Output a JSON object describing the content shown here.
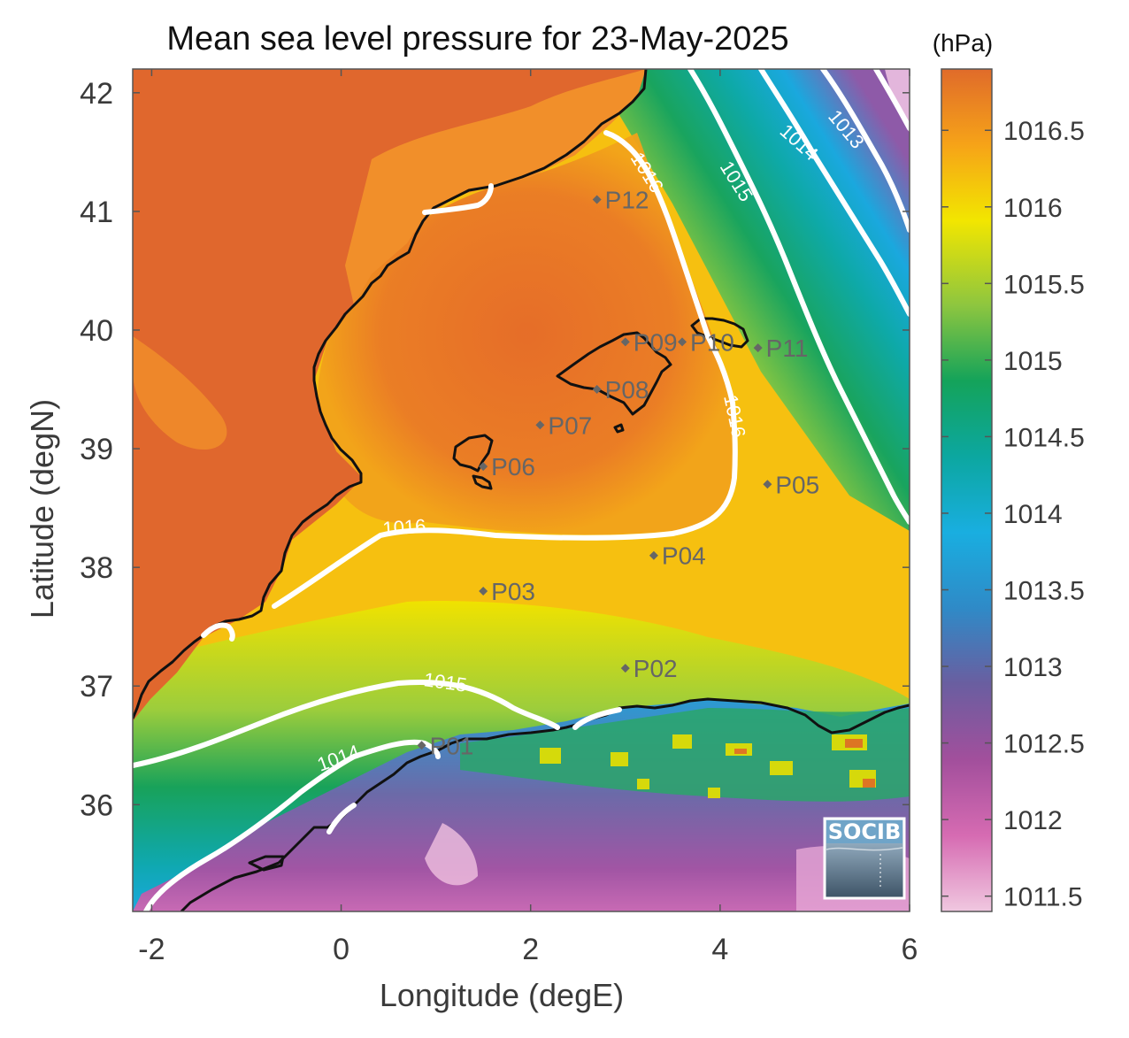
{
  "title": "Mean sea level pressure for 23-May-2025",
  "units": "(hPa)",
  "xlabel": "Longitude (degE)",
  "ylabel": "Latitude (degN)",
  "x_ticks": [
    "-2",
    "0",
    "2",
    "4",
    "6"
  ],
  "y_ticks": [
    "42",
    "41",
    "40",
    "39",
    "38",
    "37",
    "36"
  ],
  "colorbar_ticks": [
    "1016.5",
    "1016",
    "1015.5",
    "1015",
    "1014.5",
    "1014",
    "1013.5",
    "1013",
    "1012.5",
    "1012",
    "1011.5"
  ],
  "contour_labels": {
    "c1016_north": "1016",
    "c1016_east": "1016",
    "c1016_south": "1016",
    "c1015_south": "1015",
    "c1015_ne": "1015",
    "c1014_ne": "1014",
    "c1014_sw": "1014",
    "c1013_ne": "1013"
  },
  "logo": "SOCIB",
  "chart_data": {
    "type": "heatmap",
    "title": "Mean sea level pressure for 23-May-2025",
    "xlabel": "Longitude (degE)",
    "ylabel": "Latitude (degN)",
    "xlim": [
      -2.2,
      6.0
    ],
    "ylim": [
      35.1,
      42.2
    ],
    "colorbar": {
      "label": "(hPa)",
      "range": [
        1011.4,
        1016.9
      ]
    },
    "contour_levels": [
      1013,
      1014,
      1015,
      1016
    ],
    "stations": [
      {
        "name": "P01",
        "lon": 0.85,
        "lat": 36.5
      },
      {
        "name": "P02",
        "lon": 3.0,
        "lat": 37.15
      },
      {
        "name": "P03",
        "lon": 1.5,
        "lat": 37.8
      },
      {
        "name": "P04",
        "lon": 3.3,
        "lat": 38.1
      },
      {
        "name": "P05",
        "lon": 4.5,
        "lat": 38.7
      },
      {
        "name": "P06",
        "lon": 1.5,
        "lat": 38.85
      },
      {
        "name": "P07",
        "lon": 2.1,
        "lat": 39.2
      },
      {
        "name": "P08",
        "lon": 2.7,
        "lat": 39.5
      },
      {
        "name": "P09",
        "lon": 3.0,
        "lat": 39.9
      },
      {
        "name": "P10",
        "lon": 3.6,
        "lat": 39.9
      },
      {
        "name": "P11",
        "lon": 4.4,
        "lat": 39.85
      },
      {
        "name": "P12",
        "lon": 2.7,
        "lat": 41.1
      }
    ]
  }
}
